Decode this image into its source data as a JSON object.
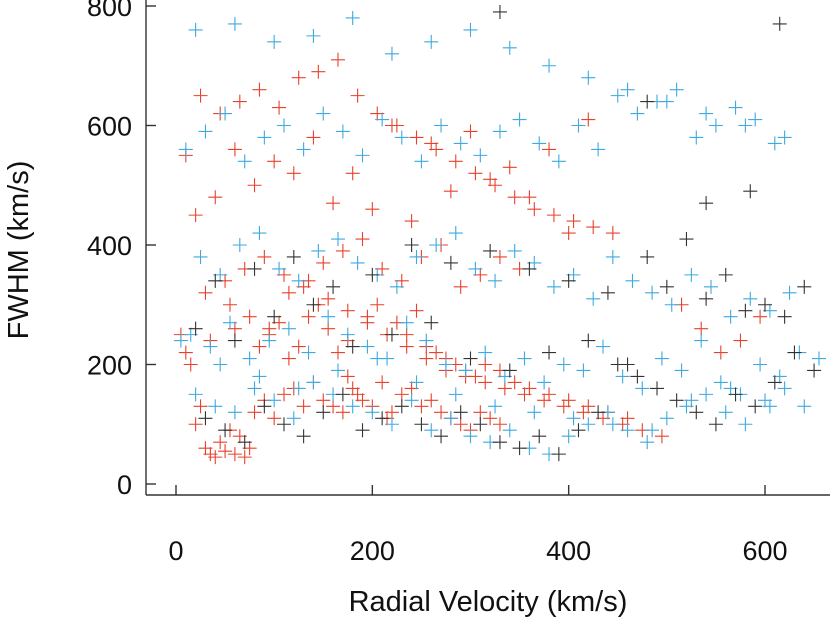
{
  "chart_data": {
    "type": "scatter",
    "title": "",
    "xlabel": "Radial Velocity (km/s)",
    "ylabel": "FWHM (km/s)",
    "xlim": [
      -25,
      665
    ],
    "ylim": [
      -20,
      800
    ],
    "xticks": [
      0,
      200,
      400,
      600
    ],
    "yticks": [
      0,
      200,
      400,
      600,
      800
    ],
    "xtick_labels": [
      "0",
      "200",
      "400",
      "600"
    ],
    "ytick_labels": [
      "0",
      "200",
      "400",
      "600",
      "800"
    ],
    "marker": "plus",
    "grid": false,
    "series": [
      {
        "name": "red",
        "color": "#e8412c",
        "x": [
          30,
          35,
          40,
          45,
          50,
          60,
          70,
          75,
          20,
          25,
          55,
          65,
          80,
          90,
          100,
          110,
          120,
          130,
          140,
          150,
          160,
          170,
          175,
          180,
          185,
          190,
          200,
          210,
          215,
          220,
          230,
          240,
          250,
          260,
          270,
          280,
          290,
          300,
          310,
          320,
          330,
          15,
          10,
          5,
          35,
          60,
          85,
          95,
          105,
          115,
          125,
          135,
          145,
          155,
          165,
          175,
          195,
          205,
          225,
          235,
          245,
          255,
          265,
          275,
          285,
          295,
          305,
          315,
          330,
          345,
          360,
          380,
          400,
          420,
          440,
          460,
          30,
          50,
          70,
          90,
          110,
          130,
          150,
          170,
          190,
          210,
          230,
          250,
          270,
          290,
          310,
          330,
          350,
          20,
          40,
          80,
          120,
          160,
          200,
          240,
          280,
          320,
          360,
          400,
          10,
          60,
          100,
          140,
          180,
          220,
          260,
          300,
          340,
          380,
          420,
          25,
          45,
          65,
          85,
          105,
          125,
          145,
          165,
          185,
          205,
          225,
          245,
          265,
          285,
          305,
          325,
          345,
          365,
          385,
          405,
          425,
          445,
          55,
          75,
          95,
          115,
          135,
          155,
          175,
          195,
          215,
          235,
          255,
          275,
          295,
          315,
          335,
          355,
          375,
          395,
          415,
          435,
          455,
          475,
          495,
          515,
          535,
          555,
          575,
          595
        ],
        "y": [
          60,
          50,
          45,
          70,
          55,
          50,
          45,
          60,
          100,
          130,
          90,
          80,
          120,
          140,
          110,
          150,
          160,
          130,
          170,
          140,
          130,
          120,
          180,
          160,
          150,
          140,
          130,
          170,
          110,
          120,
          150,
          160,
          130,
          140,
          120,
          110,
          100,
          90,
          120,
          110,
          100,
          200,
          220,
          250,
          240,
          260,
          230,
          250,
          270,
          210,
          230,
          280,
          300,
          260,
          220,
          240,
          280,
          300,
          270,
          250,
          290,
          230,
          220,
          210,
          200,
          190,
          180,
          200,
          190,
          170,
          160,
          150,
          140,
          130,
          120,
          110,
          320,
          340,
          360,
          380,
          350,
          330,
          370,
          390,
          410,
          360,
          340,
          380,
          400,
          330,
          350,
          380,
          360,
          450,
          480,
          500,
          520,
          470,
          460,
          440,
          490,
          510,
          480,
          420,
          550,
          560,
          540,
          580,
          520,
          600,
          570,
          590,
          530,
          560,
          610,
          650,
          620,
          640,
          660,
          630,
          680,
          690,
          710,
          650,
          620,
          600,
          580,
          560,
          540,
          520,
          500,
          480,
          460,
          450,
          440,
          430,
          420,
          300,
          280,
          260,
          320,
          340,
          310,
          290,
          270,
          250,
          230,
          210,
          190,
          180,
          170,
          160,
          150,
          140,
          130,
          120,
          110,
          100,
          90,
          80,
          300,
          260,
          220,
          240,
          280
        ],
        "size": 7
      },
      {
        "name": "cyan",
        "color": "#3fa9e0",
        "x": [
          20,
          40,
          60,
          80,
          100,
          120,
          140,
          160,
          180,
          200,
          220,
          240,
          260,
          280,
          300,
          320,
          340,
          360,
          380,
          400,
          420,
          440,
          460,
          480,
          500,
          520,
          540,
          560,
          580,
          600,
          620,
          640,
          15,
          35,
          55,
          75,
          95,
          115,
          135,
          155,
          175,
          195,
          215,
          235,
          255,
          275,
          295,
          315,
          335,
          355,
          375,
          395,
          415,
          435,
          455,
          475,
          495,
          515,
          535,
          555,
          575,
          595,
          615,
          635,
          655,
          25,
          45,
          65,
          85,
          105,
          125,
          145,
          165,
          185,
          205,
          225,
          245,
          265,
          285,
          305,
          325,
          345,
          365,
          385,
          405,
          425,
          445,
          465,
          485,
          505,
          525,
          545,
          565,
          585,
          605,
          625,
          10,
          30,
          50,
          70,
          90,
          110,
          130,
          150,
          170,
          190,
          210,
          230,
          250,
          270,
          290,
          310,
          330,
          350,
          370,
          390,
          410,
          430,
          450,
          470,
          490,
          510,
          530,
          550,
          570,
          590,
          610,
          20,
          60,
          100,
          140,
          180,
          220,
          260,
          300,
          340,
          380,
          420,
          460,
          500,
          540,
          580,
          620,
          5,
          45,
          85,
          125,
          165,
          205,
          245,
          285,
          325,
          365,
          405,
          445,
          485,
          525,
          565,
          605
        ],
        "y": [
          150,
          130,
          120,
          160,
          140,
          110,
          170,
          150,
          130,
          120,
          100,
          140,
          90,
          110,
          80,
          70,
          90,
          60,
          50,
          80,
          100,
          120,
          90,
          70,
          110,
          130,
          150,
          120,
          100,
          140,
          160,
          130,
          250,
          230,
          270,
          210,
          240,
          260,
          220,
          280,
          250,
          230,
          210,
          270,
          240,
          200,
          190,
          220,
          180,
          210,
          170,
          200,
          190,
          230,
          180,
          160,
          210,
          190,
          240,
          170,
          150,
          200,
          180,
          220,
          210,
          380,
          350,
          400,
          420,
          360,
          340,
          390,
          410,
          370,
          350,
          330,
          380,
          400,
          420,
          360,
          340,
          390,
          370,
          330,
          350,
          310,
          380,
          340,
          320,
          300,
          350,
          330,
          280,
          310,
          290,
          320,
          560,
          590,
          620,
          540,
          580,
          600,
          560,
          620,
          590,
          550,
          610,
          580,
          540,
          600,
          570,
          550,
          590,
          610,
          570,
          540,
          600,
          560,
          650,
          620,
          640,
          660,
          580,
          600,
          630,
          610,
          570,
          760,
          770,
          740,
          750,
          780,
          720,
          740,
          760,
          730,
          700,
          680,
          660,
          640,
          620,
          600,
          580,
          240,
          200,
          180,
          160,
          190,
          210,
          170,
          150,
          130,
          120,
          110,
          100,
          90,
          140,
          160,
          130
        ],
        "size": 7
      },
      {
        "name": "black",
        "color": "#333333",
        "x": [
          30,
          50,
          70,
          90,
          110,
          130,
          150,
          170,
          190,
          210,
          230,
          250,
          270,
          290,
          310,
          330,
          350,
          370,
          390,
          410,
          430,
          450,
          470,
          490,
          510,
          530,
          550,
          570,
          590,
          610,
          630,
          650,
          20,
          60,
          100,
          140,
          180,
          220,
          260,
          300,
          340,
          380,
          420,
          460,
          500,
          540,
          580,
          620,
          40,
          80,
          120,
          160,
          200,
          240,
          280,
          320,
          360,
          400,
          440,
          480,
          520,
          560,
          600,
          640,
          330,
          615,
          480,
          585,
          540
        ],
        "y": [
          110,
          90,
          70,
          130,
          100,
          80,
          120,
          150,
          90,
          110,
          130,
          100,
          80,
          120,
          100,
          70,
          60,
          80,
          50,
          90,
          120,
          200,
          180,
          160,
          140,
          120,
          100,
          150,
          130,
          170,
          220,
          190,
          260,
          240,
          280,
          300,
          230,
          250,
          270,
          210,
          190,
          220,
          240,
          200,
          330,
          310,
          290,
          280,
          340,
          360,
          380,
          330,
          350,
          400,
          370,
          390,
          360,
          340,
          320,
          380,
          410,
          350,
          300,
          330,
          790,
          770,
          640,
          490,
          470
        ],
        "size": 7
      }
    ]
  }
}
